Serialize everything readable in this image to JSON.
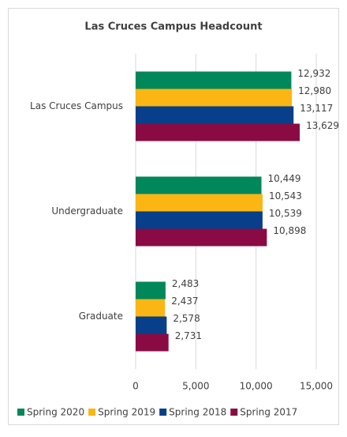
{
  "chart_data": {
    "type": "hbar",
    "title": "Las Cruces Campus Headcount",
    "categories": [
      "Las Cruces Campus",
      "Undergraduate",
      "Graduate"
    ],
    "series": [
      {
        "name": "Spring 2020",
        "color": "#00875a",
        "values": [
          12932,
          10449,
          2483
        ],
        "value_labels": [
          "12,932",
          "10,449",
          "2,483"
        ]
      },
      {
        "name": "Spring 2019",
        "color": "#fbb614",
        "values": [
          12980,
          10543,
          2437
        ],
        "value_labels": [
          "12,980",
          "10,543",
          "2,437"
        ]
      },
      {
        "name": "Spring 2018",
        "color": "#073f8a",
        "values": [
          13117,
          10539,
          2578
        ],
        "value_labels": [
          "13,117",
          "10,539",
          "2,578"
        ]
      },
      {
        "name": "Spring 2017",
        "color": "#8a0b43",
        "values": [
          13629,
          10898,
          2731
        ],
        "value_labels": [
          "13,629",
          "10,898",
          "2,731"
        ]
      }
    ],
    "xlim": [
      0,
      15000
    ],
    "xticks": [
      0,
      {
        "value": 5000,
        "label": "5,000"
      },
      {
        "value": 10000,
        "label": "10,000"
      },
      {
        "value": 15000,
        "label": "15,000"
      }
    ],
    "grid": true,
    "legend": "bottom"
  }
}
